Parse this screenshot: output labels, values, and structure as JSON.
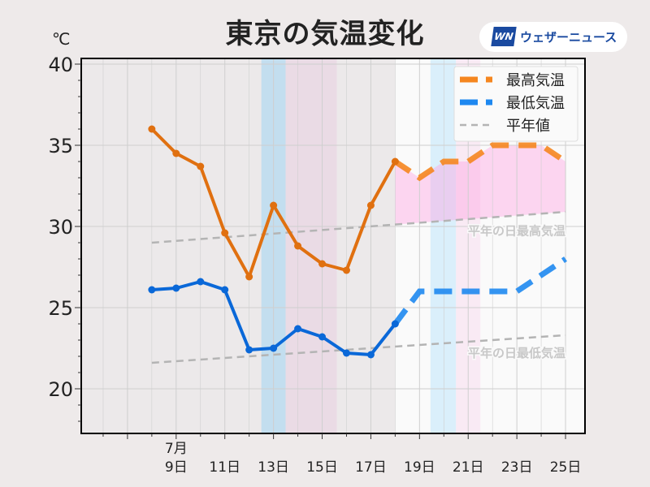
{
  "chart_data": {
    "type": "line",
    "title": "東京の気温変化",
    "ylabel": "℃",
    "ylim": [
      17.25,
      40.35
    ],
    "xlim": [
      5.1,
      25.8
    ],
    "yticks": [
      20,
      25,
      30,
      35,
      40
    ],
    "xticks": [
      {
        "day": 9,
        "label": "9日",
        "month": "7月"
      },
      {
        "day": 11,
        "label": "11日"
      },
      {
        "day": 13,
        "label": "13日"
      },
      {
        "day": 15,
        "label": "15日"
      },
      {
        "day": 17,
        "label": "17日"
      },
      {
        "day": 19,
        "label": "19日"
      },
      {
        "day": 21,
        "label": "21日"
      },
      {
        "day": 23,
        "label": "23日"
      },
      {
        "day": 25,
        "label": "25日"
      }
    ],
    "grid": true,
    "legend_position": "top-right",
    "series": [
      {
        "name": "最高気温",
        "color": "#e07010",
        "observed_x": [
          8,
          9,
          10,
          11,
          12,
          13,
          14,
          15,
          16,
          17,
          18
        ],
        "observed": [
          36.0,
          34.5,
          33.7,
          29.6,
          26.9,
          31.3,
          28.8,
          27.7,
          27.3,
          31.3,
          34.0
        ],
        "forecast_x": [
          18,
          19,
          20,
          21,
          22,
          23,
          24,
          25
        ],
        "forecast": [
          34.0,
          33.0,
          34.0,
          34.0,
          35.0,
          35.0,
          35.0,
          34.0
        ],
        "forecast_color": "#f5861f"
      },
      {
        "name": "最低気温",
        "color": "#0a68d8",
        "observed_x": [
          8,
          9,
          10,
          11,
          12,
          13,
          14,
          15,
          16,
          17,
          18
        ],
        "observed": [
          26.1,
          26.2,
          26.6,
          26.1,
          22.4,
          22.5,
          23.7,
          23.2,
          22.2,
          22.1,
          24.0
        ],
        "forecast_x": [
          18,
          19,
          20,
          21,
          22,
          23,
          24,
          25
        ],
        "forecast": [
          24.0,
          26.0,
          26.0,
          26.0,
          26.0,
          26.0,
          27.0,
          28.0
        ],
        "forecast_color": "#1e88f0"
      },
      {
        "name": "平年値",
        "normal_high_x": [
          8,
          25
        ],
        "normal_high": [
          29.0,
          30.9
        ],
        "normal_low_x": [
          8,
          25
        ],
        "normal_low": [
          21.6,
          23.3
        ],
        "color": "#b4b4b4"
      }
    ],
    "annotations": [
      "平年の日最高気温",
      "平年の日最低気温"
    ],
    "bands": [
      {
        "from": 12.5,
        "to": 13.5,
        "color": "#bcdcf0"
      },
      {
        "from": 13.5,
        "to": 15.6,
        "color": "#ead8e4"
      },
      {
        "from": 19.45,
        "to": 20.5,
        "color": "#d4ecfa"
      },
      {
        "from": 20.5,
        "to": 21.5,
        "color": "#f8e6f2"
      }
    ],
    "forecast_start": 18
  },
  "logo": {
    "mark": "WN",
    "text": "ウェザーニュース"
  }
}
